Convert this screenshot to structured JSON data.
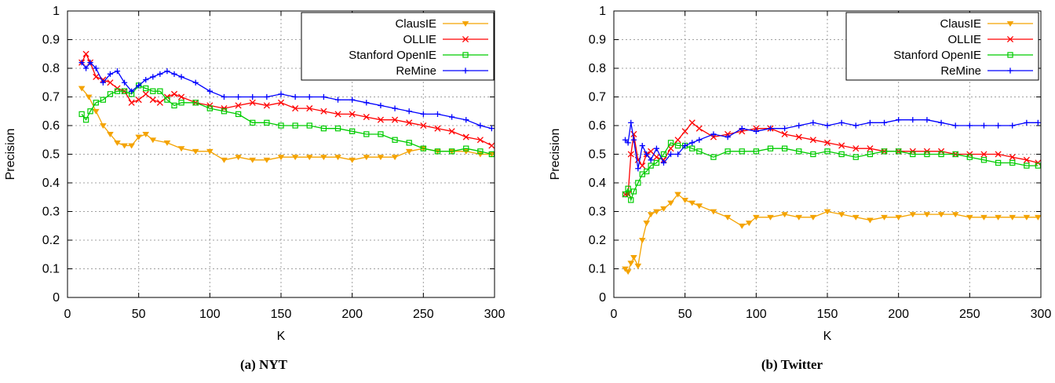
{
  "chart_data": [
    {
      "type": "line",
      "caption": "(a) NYT",
      "xlabel": "K",
      "ylabel": "Precision",
      "xlim": [
        0,
        300
      ],
      "ylim": [
        0,
        1
      ],
      "xticks": [
        "0",
        "50",
        "100",
        "150",
        "200",
        "250",
        "300"
      ],
      "yticks": [
        "0",
        "0.1",
        "0.2",
        "0.3",
        "0.4",
        "0.5",
        "0.6",
        "0.7",
        "0.8",
        "0.9",
        "1"
      ],
      "grid": true,
      "legend": "top-right",
      "series": [
        {
          "name": "ClausIE",
          "color": "#f4a300",
          "marker": "triangle-down",
          "x": [
            10,
            15,
            20,
            25,
            30,
            35,
            40,
            45,
            50,
            55,
            60,
            70,
            80,
            90,
            100,
            110,
            120,
            130,
            140,
            150,
            160,
            170,
            180,
            190,
            200,
            210,
            220,
            230,
            240,
            250,
            260,
            270,
            280,
            290,
            298
          ],
          "y": [
            0.73,
            0.7,
            0.65,
            0.6,
            0.57,
            0.54,
            0.53,
            0.53,
            0.56,
            0.57,
            0.55,
            0.54,
            0.52,
            0.51,
            0.51,
            0.48,
            0.49,
            0.48,
            0.48,
            0.49,
            0.49,
            0.49,
            0.49,
            0.49,
            0.48,
            0.49,
            0.49,
            0.49,
            0.51,
            0.52,
            0.51,
            0.51,
            0.51,
            0.5,
            0.5
          ]
        },
        {
          "name": "OLLIE",
          "color": "#ff0000",
          "marker": "x",
          "x": [
            10,
            13,
            16,
            20,
            25,
            30,
            35,
            40,
            45,
            50,
            55,
            60,
            65,
            70,
            75,
            80,
            90,
            100,
            110,
            120,
            130,
            140,
            150,
            160,
            170,
            180,
            190,
            200,
            210,
            220,
            230,
            240,
            250,
            260,
            270,
            280,
            290,
            298
          ],
          "y": [
            0.82,
            0.85,
            0.82,
            0.77,
            0.76,
            0.75,
            0.73,
            0.72,
            0.68,
            0.69,
            0.71,
            0.69,
            0.68,
            0.7,
            0.71,
            0.7,
            0.68,
            0.67,
            0.66,
            0.67,
            0.68,
            0.67,
            0.68,
            0.66,
            0.66,
            0.65,
            0.64,
            0.64,
            0.63,
            0.62,
            0.62,
            0.61,
            0.6,
            0.59,
            0.58,
            0.56,
            0.55,
            0.53
          ]
        },
        {
          "name": "Stanford OpenIE",
          "color": "#00cc00",
          "marker": "square",
          "x": [
            10,
            13,
            16,
            20,
            25,
            30,
            35,
            40,
            45,
            50,
            55,
            60,
            65,
            70,
            75,
            80,
            90,
            100,
            110,
            120,
            130,
            140,
            150,
            160,
            170,
            180,
            190,
            200,
            210,
            220,
            230,
            240,
            250,
            260,
            270,
            280,
            290,
            298
          ],
          "y": [
            0.64,
            0.62,
            0.65,
            0.68,
            0.69,
            0.71,
            0.72,
            0.72,
            0.71,
            0.74,
            0.73,
            0.72,
            0.72,
            0.69,
            0.67,
            0.68,
            0.68,
            0.66,
            0.65,
            0.64,
            0.61,
            0.61,
            0.6,
            0.6,
            0.6,
            0.59,
            0.59,
            0.58,
            0.57,
            0.57,
            0.55,
            0.54,
            0.52,
            0.51,
            0.51,
            0.52,
            0.51,
            0.5
          ]
        },
        {
          "name": "ReMine",
          "color": "#0000ff",
          "marker": "plus",
          "x": [
            10,
            13,
            16,
            20,
            25,
            30,
            35,
            40,
            45,
            50,
            55,
            60,
            65,
            70,
            75,
            80,
            90,
            100,
            110,
            120,
            130,
            140,
            150,
            160,
            170,
            180,
            190,
            200,
            210,
            220,
            230,
            240,
            250,
            260,
            270,
            280,
            290,
            298
          ],
          "y": [
            0.82,
            0.8,
            0.82,
            0.8,
            0.75,
            0.78,
            0.79,
            0.75,
            0.72,
            0.74,
            0.76,
            0.77,
            0.78,
            0.79,
            0.78,
            0.77,
            0.75,
            0.72,
            0.7,
            0.7,
            0.7,
            0.7,
            0.71,
            0.7,
            0.7,
            0.7,
            0.69,
            0.69,
            0.68,
            0.67,
            0.66,
            0.65,
            0.64,
            0.64,
            0.63,
            0.62,
            0.6,
            0.59
          ]
        }
      ]
    },
    {
      "type": "line",
      "caption": "(b) Twitter",
      "xlabel": "K",
      "ylabel": "Precision",
      "xlim": [
        0,
        300
      ],
      "ylim": [
        0,
        1
      ],
      "xticks": [
        "0",
        "50",
        "100",
        "150",
        "200",
        "250",
        "300"
      ],
      "yticks": [
        "0",
        "0.1",
        "0.2",
        "0.3",
        "0.4",
        "0.5",
        "0.6",
        "0.7",
        "0.8",
        "0.9",
        "1"
      ],
      "grid": true,
      "legend": "top-right",
      "series": [
        {
          "name": "ClausIE",
          "color": "#f4a300",
          "marker": "triangle-down",
          "x": [
            8,
            10,
            12,
            14,
            17,
            20,
            23,
            26,
            30,
            35,
            40,
            45,
            50,
            55,
            60,
            70,
            80,
            90,
            95,
            100,
            110,
            120,
            130,
            140,
            150,
            160,
            170,
            180,
            190,
            200,
            210,
            220,
            230,
            240,
            250,
            260,
            270,
            280,
            290,
            298
          ],
          "y": [
            0.1,
            0.09,
            0.12,
            0.14,
            0.11,
            0.2,
            0.26,
            0.29,
            0.3,
            0.31,
            0.33,
            0.36,
            0.34,
            0.33,
            0.32,
            0.3,
            0.28,
            0.25,
            0.26,
            0.28,
            0.28,
            0.29,
            0.28,
            0.28,
            0.3,
            0.29,
            0.28,
            0.27,
            0.28,
            0.28,
            0.29,
            0.29,
            0.29,
            0.29,
            0.28,
            0.28,
            0.28,
            0.28,
            0.28,
            0.28
          ]
        },
        {
          "name": "OLLIE",
          "color": "#ff0000",
          "marker": "x",
          "x": [
            8,
            10,
            12,
            14,
            17,
            20,
            23,
            26,
            30,
            35,
            40,
            45,
            50,
            55,
            60,
            70,
            80,
            90,
            100,
            110,
            120,
            130,
            140,
            150,
            160,
            170,
            180,
            190,
            200,
            210,
            220,
            230,
            240,
            250,
            260,
            270,
            280,
            290,
            298
          ],
          "y": [
            0.36,
            0.36,
            0.5,
            0.57,
            0.48,
            0.46,
            0.5,
            0.51,
            0.49,
            0.48,
            0.52,
            0.55,
            0.58,
            0.61,
            0.59,
            0.56,
            0.57,
            0.58,
            0.59,
            0.59,
            0.57,
            0.56,
            0.55,
            0.54,
            0.53,
            0.52,
            0.52,
            0.51,
            0.51,
            0.51,
            0.51,
            0.51,
            0.5,
            0.5,
            0.5,
            0.5,
            0.49,
            0.48,
            0.47
          ]
        },
        {
          "name": "Stanford OpenIE",
          "color": "#00cc00",
          "marker": "square",
          "x": [
            8,
            10,
            12,
            14,
            17,
            20,
            23,
            26,
            30,
            35,
            40,
            45,
            50,
            55,
            60,
            70,
            80,
            90,
            100,
            110,
            120,
            130,
            140,
            150,
            160,
            170,
            180,
            190,
            200,
            210,
            220,
            230,
            240,
            250,
            260,
            270,
            280,
            290,
            298
          ],
          "y": [
            0.36,
            0.38,
            0.34,
            0.37,
            0.4,
            0.43,
            0.44,
            0.46,
            0.47,
            0.5,
            0.54,
            0.53,
            0.53,
            0.52,
            0.51,
            0.49,
            0.51,
            0.51,
            0.51,
            0.52,
            0.52,
            0.51,
            0.5,
            0.51,
            0.5,
            0.49,
            0.5,
            0.51,
            0.51,
            0.5,
            0.5,
            0.5,
            0.5,
            0.49,
            0.48,
            0.47,
            0.47,
            0.46,
            0.46
          ]
        },
        {
          "name": "ReMine",
          "color": "#0000ff",
          "marker": "plus",
          "x": [
            8,
            10,
            12,
            14,
            17,
            20,
            23,
            26,
            30,
            35,
            40,
            45,
            50,
            55,
            60,
            70,
            80,
            90,
            100,
            110,
            120,
            130,
            140,
            150,
            160,
            170,
            180,
            190,
            200,
            210,
            220,
            230,
            240,
            250,
            260,
            270,
            280,
            290,
            298
          ],
          "y": [
            0.55,
            0.54,
            0.61,
            0.55,
            0.45,
            0.53,
            0.5,
            0.48,
            0.52,
            0.47,
            0.5,
            0.5,
            0.53,
            0.54,
            0.55,
            0.57,
            0.56,
            0.59,
            0.58,
            0.59,
            0.59,
            0.6,
            0.61,
            0.6,
            0.61,
            0.6,
            0.61,
            0.61,
            0.62,
            0.62,
            0.62,
            0.61,
            0.6,
            0.6,
            0.6,
            0.6,
            0.6,
            0.61,
            0.61
          ]
        }
      ]
    }
  ]
}
